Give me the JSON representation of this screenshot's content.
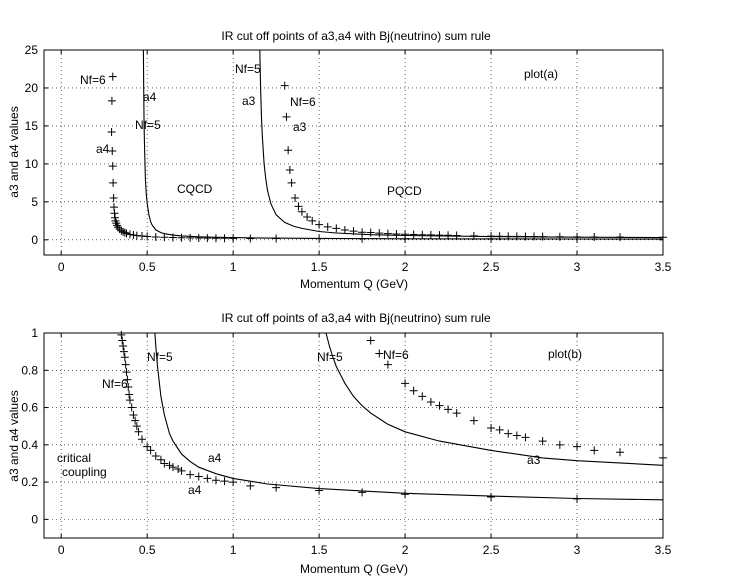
{
  "chart_data": [
    {
      "type": "line",
      "title": "IR cut off points of a3,a4 with Bj(neutrino) sum rule",
      "xlabel": "Momentum Q (GeV)",
      "ylabel": "a3 and a4 values",
      "xlim": [
        -0.1,
        3.5
      ],
      "ylim": [
        -2,
        25
      ],
      "xticks": [
        0,
        0.5,
        1,
        1.5,
        2,
        2.5,
        3,
        3.5
      ],
      "xtick_labels": [
        "0",
        "0.5",
        "1",
        "1.5",
        "2",
        "2.5",
        "3",
        "3.5"
      ],
      "yticks": [
        0,
        5,
        10,
        15,
        20,
        25
      ],
      "ytick_labels": [
        "0",
        "5",
        "10",
        "15",
        "20",
        "25"
      ],
      "grid": true,
      "series": [
        {
          "name": "a4 Nf=5",
          "style": "line",
          "x": [
            0.478,
            0.48,
            0.482,
            0.485,
            0.49,
            0.495,
            0.5,
            0.51,
            0.52,
            0.53,
            0.55,
            0.58,
            0.6,
            0.65,
            0.7,
            0.8,
            0.9,
            1.0,
            1.2,
            1.5,
            2.0,
            2.5,
            3.0,
            3.5
          ],
          "y": [
            25,
            20,
            15,
            12,
            8,
            6,
            4.8,
            3.3,
            2.4,
            1.9,
            1.3,
            0.95,
            0.8,
            0.62,
            0.52,
            0.4,
            0.33,
            0.29,
            0.23,
            0.18,
            0.14,
            0.12,
            0.11,
            0.1
          ]
        },
        {
          "name": "a3 Nf=5",
          "style": "line",
          "x": [
            1.155,
            1.16,
            1.165,
            1.17,
            1.18,
            1.19,
            1.2,
            1.22,
            1.25,
            1.3,
            1.35,
            1.4,
            1.5,
            1.6,
            1.8,
            2.0,
            2.5,
            3.0,
            3.5
          ],
          "y": [
            25,
            20,
            16,
            13.5,
            10,
            8,
            6.5,
            4.7,
            3.3,
            2.3,
            1.8,
            1.5,
            1.1,
            0.9,
            0.68,
            0.57,
            0.42,
            0.34,
            0.29
          ]
        },
        {
          "name": "a4 Nf=6",
          "style": "plus",
          "x": [
            0.3,
            0.295,
            0.293,
            0.297,
            0.3,
            0.302,
            0.305,
            0.307,
            0.31,
            0.313,
            0.316,
            0.32,
            0.325,
            0.33,
            0.34,
            0.35,
            0.36,
            0.37,
            0.38,
            0.4,
            0.42,
            0.44,
            0.47,
            0.5,
            0.55,
            0.6,
            0.65,
            0.7,
            0.75,
            0.8,
            0.85,
            0.9,
            0.95,
            1.0,
            1.1,
            1.25,
            1.5,
            1.75,
            2.0,
            2.5,
            3.0
          ],
          "y": [
            21.5,
            18.3,
            14.2,
            11.7,
            9.7,
            7.5,
            5.5,
            4.3,
            3.5,
            2.9,
            2.5,
            2.2,
            1.9,
            1.65,
            1.4,
            1.2,
            1.05,
            0.95,
            0.85,
            0.72,
            0.63,
            0.56,
            0.5,
            0.44,
            0.37,
            0.33,
            0.3,
            0.28,
            0.26,
            0.24,
            0.23,
            0.21,
            0.2,
            0.19,
            0.18,
            0.17,
            0.15,
            0.14,
            0.13,
            0.12,
            0.11
          ]
        },
        {
          "name": "a3 Nf=6",
          "style": "plus",
          "x": [
            1.3,
            1.31,
            1.32,
            1.33,
            1.34,
            1.36,
            1.38,
            1.4,
            1.43,
            1.46,
            1.5,
            1.55,
            1.6,
            1.65,
            1.7,
            1.75,
            1.8,
            1.85,
            1.9,
            1.95,
            2.0,
            2.05,
            2.1,
            2.15,
            2.2,
            2.25,
            2.3,
            2.4,
            2.5,
            2.55,
            2.6,
            2.65,
            2.7,
            2.75,
            2.8,
            2.9,
            3.0,
            3.1,
            3.25,
            3.5
          ],
          "y": [
            20.3,
            16.2,
            11.8,
            9.2,
            7.5,
            5.5,
            4.4,
            3.7,
            3.0,
            2.5,
            2.0,
            1.7,
            1.5,
            1.3,
            1.15,
            1.0,
            0.96,
            0.88,
            0.82,
            0.76,
            0.73,
            0.7,
            0.67,
            0.65,
            0.62,
            0.6,
            0.57,
            0.52,
            0.49,
            0.47,
            0.46,
            0.45,
            0.44,
            0.43,
            0.42,
            0.4,
            0.39,
            0.37,
            0.36,
            0.33
          ]
        }
      ],
      "annotations": [
        "Nf=6",
        "a4",
        "Nf=5",
        "a4",
        "CQCD",
        "Nf=5",
        "a3",
        "Nf=6",
        "a3",
        "PQCD",
        "plot(a)"
      ]
    },
    {
      "type": "line",
      "title": "IR cut off points of a3,a4 with Bj(neutrino) sum rule",
      "xlabel": "Momentum Q (GeV)",
      "ylabel": "a3 and a4 values",
      "xlim": [
        -0.1,
        3.5
      ],
      "ylim": [
        -0.1,
        1
      ],
      "xticks": [
        0,
        0.5,
        1,
        1.5,
        2,
        2.5,
        3,
        3.5
      ],
      "xtick_labels": [
        "0",
        "0.5",
        "1",
        "1.5",
        "2",
        "2.5",
        "3",
        "3.5"
      ],
      "yticks": [
        0,
        0.2,
        0.4,
        0.6,
        0.8,
        1
      ],
      "ytick_labels": [
        "0",
        "0.2",
        "0.4",
        "0.6",
        "0.8",
        "1"
      ],
      "grid": true,
      "series": [
        {
          "name": "a4 Nf=5",
          "style": "line",
          "x": [
            0.545,
            0.55,
            0.56,
            0.58,
            0.6,
            0.63,
            0.65,
            0.7,
            0.75,
            0.8,
            0.9,
            1.0,
            1.2,
            1.5,
            2.0,
            2.5,
            3.0,
            3.5
          ],
          "y": [
            1.0,
            0.93,
            0.82,
            0.66,
            0.56,
            0.46,
            0.42,
            0.35,
            0.31,
            0.28,
            0.245,
            0.22,
            0.19,
            0.165,
            0.14,
            0.125,
            0.112,
            0.105
          ]
        },
        {
          "name": "a3 Nf=5",
          "style": "line",
          "x": [
            1.54,
            1.56,
            1.58,
            1.6,
            1.65,
            1.7,
            1.75,
            1.8,
            1.9,
            2.0,
            2.2,
            2.5,
            2.8,
            3.0,
            3.5
          ],
          "y": [
            1.0,
            0.93,
            0.87,
            0.82,
            0.73,
            0.66,
            0.61,
            0.57,
            0.51,
            0.47,
            0.42,
            0.37,
            0.33,
            0.315,
            0.29
          ]
        },
        {
          "name": "a4 Nf=6",
          "style": "plus",
          "x": [
            0.35,
            0.355,
            0.36,
            0.365,
            0.37,
            0.375,
            0.38,
            0.385,
            0.39,
            0.395,
            0.4,
            0.41,
            0.42,
            0.43,
            0.44,
            0.45,
            0.47,
            0.5,
            0.52,
            0.55,
            0.58,
            0.6,
            0.63,
            0.65,
            0.68,
            0.7,
            0.75,
            0.8,
            0.85,
            0.9,
            0.95,
            1.0,
            1.1,
            1.25,
            1.5,
            1.75,
            2.0,
            2.5,
            3.0
          ],
          "y": [
            0.99,
            0.96,
            0.93,
            0.9,
            0.87,
            0.83,
            0.79,
            0.75,
            0.71,
            0.67,
            0.64,
            0.6,
            0.56,
            0.53,
            0.5,
            0.47,
            0.43,
            0.39,
            0.37,
            0.34,
            0.32,
            0.3,
            0.29,
            0.28,
            0.27,
            0.26,
            0.24,
            0.23,
            0.22,
            0.21,
            0.205,
            0.2,
            0.18,
            0.17,
            0.155,
            0.145,
            0.135,
            0.12,
            0.11
          ]
        },
        {
          "name": "a3 Nf=6",
          "style": "plus",
          "x": [
            1.8,
            1.85,
            1.9,
            2.0,
            2.05,
            2.1,
            2.15,
            2.2,
            2.25,
            2.3,
            2.4,
            2.5,
            2.55,
            2.6,
            2.65,
            2.7,
            2.8,
            2.9,
            3.0,
            3.1,
            3.25,
            3.5
          ],
          "y": [
            0.96,
            0.89,
            0.83,
            0.73,
            0.69,
            0.66,
            0.63,
            0.61,
            0.59,
            0.57,
            0.53,
            0.49,
            0.48,
            0.46,
            0.45,
            0.44,
            0.42,
            0.4,
            0.39,
            0.37,
            0.36,
            0.33
          ]
        }
      ],
      "annotations": [
        "Nf=5",
        "Nf=6",
        "a4",
        "a4",
        "critical",
        "coupling",
        "Nf=5",
        "Nf=6",
        "a3",
        "plot(b)"
      ]
    }
  ]
}
